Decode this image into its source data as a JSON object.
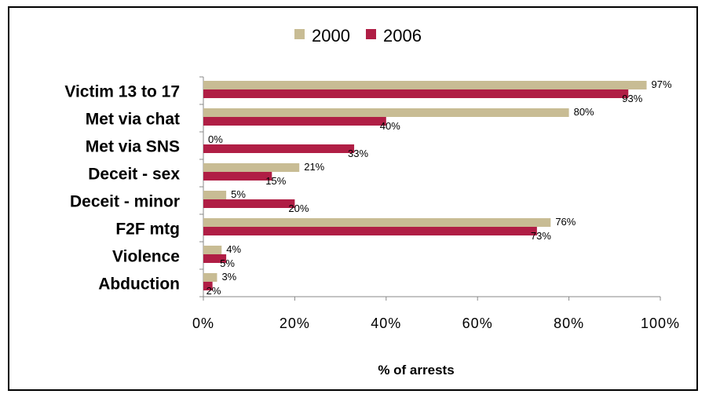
{
  "chart_data": {
    "type": "bar",
    "orientation": "horizontal",
    "categories": [
      "Victim 13 to 17",
      "Met via chat",
      "Met via SNS",
      "Deceit - sex",
      "Deceit - minor",
      "F2F mtg",
      "Violence",
      "Abduction"
    ],
    "series": [
      {
        "name": "2000",
        "color": "#c8bc94",
        "values": [
          97,
          80,
          0,
          21,
          5,
          76,
          4,
          3
        ],
        "labels": [
          "97%",
          "80%",
          "0%",
          "21%",
          "5%",
          "76%",
          "4%",
          "3%"
        ]
      },
      {
        "name": "2006",
        "color": "#b01e45",
        "values": [
          93,
          40,
          33,
          15,
          20,
          73,
          5,
          2
        ],
        "labels": [
          "93%",
          "40%",
          "33%",
          "15%",
          "20%",
          "73%",
          "5%",
          "2%"
        ]
      }
    ],
    "xlim": [
      0,
      100
    ],
    "xticks": [
      "0%",
      "20%",
      "40%",
      "60%",
      "80%",
      "100%"
    ],
    "xlabel": "% of arrests",
    "legend_position": "top",
    "grid": false
  }
}
